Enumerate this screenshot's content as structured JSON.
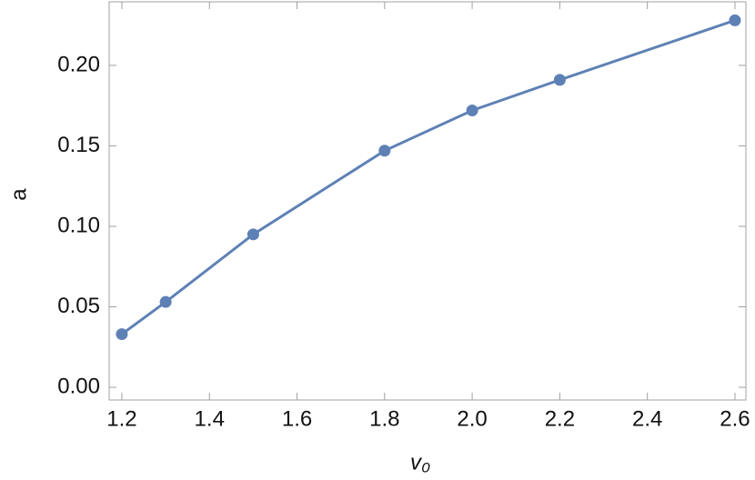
{
  "chart_data": {
    "type": "line",
    "x_label": "v₀",
    "y_label": "a",
    "x": [
      1.2,
      1.3,
      1.5,
      1.8,
      2.0,
      2.2,
      2.6
    ],
    "series": [
      {
        "color": "#5e81b5",
        "values": [
          0.033,
          0.053,
          0.095,
          0.147,
          0.172,
          0.191,
          0.228
        ]
      }
    ],
    "xlim": [
      1.171,
      2.625
    ],
    "ylim": [
      -0.0079,
      0.2395
    ],
    "xticks": [
      1.2,
      1.4,
      1.6,
      1.8,
      {
        "value": 2,
        "label": "2.0"
      },
      2.2,
      2.4,
      2.6
    ],
    "yticks": [
      {
        "value": 0,
        "label": "0.00"
      },
      {
        "value": 0.05,
        "label": "0.05"
      },
      {
        "value": 0.1,
        "label": "0.10"
      },
      {
        "value": 0.15,
        "label": "0.15"
      },
      {
        "value": 0.2,
        "label": "0.20"
      }
    ],
    "markers": true
  }
}
